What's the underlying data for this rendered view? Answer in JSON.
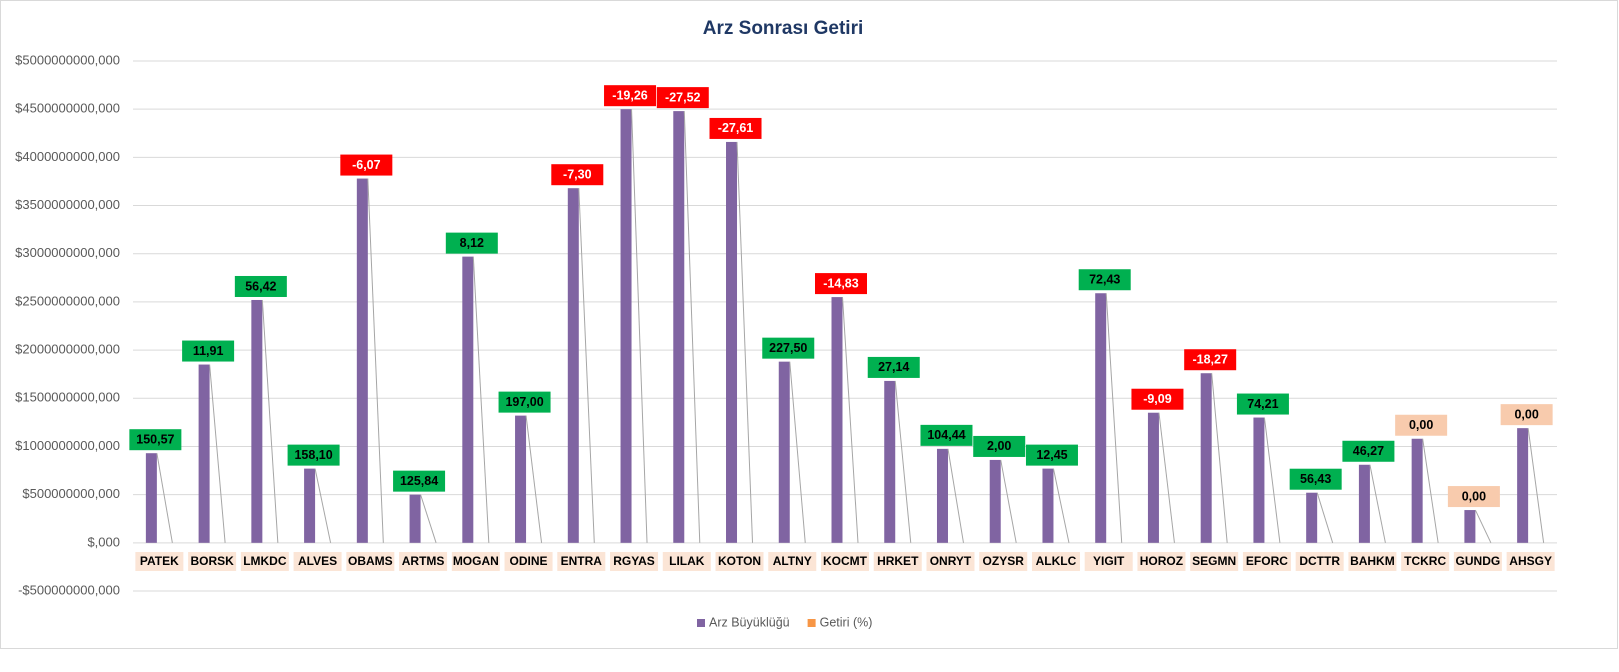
{
  "chart_data": {
    "type": "bar",
    "title": "Arz Sonrası Getiri",
    "categories": [
      "PATEK",
      "BORSK",
      "LMKDC",
      "ALVES",
      "OBAMS",
      "ARTMS",
      "MOGAN",
      "ODINE",
      "ENTRA",
      "RGYAS",
      "LILAK",
      "KOTON",
      "ALTNY",
      "KOCMT",
      "HRKET",
      "ONRYT",
      "OZYSR",
      "ALKLC",
      "YIGIT",
      "HOROZ",
      "SEGMN",
      "EFORC",
      "DCTTR",
      "BAHKM",
      "TCKRC",
      "GUNDG",
      "AHSGY"
    ],
    "series": [
      {
        "name": "Arz Büyüklüğü",
        "color": "#8064a2",
        "values": [
          930000000,
          1850000000,
          2520000000,
          770000000,
          3780000000,
          500000000,
          2970000000,
          1320000000,
          3680000000,
          4500000000,
          4480000000,
          4160000000,
          1880000000,
          2550000000,
          1680000000,
          975000000,
          860000000,
          770000000,
          2590000000,
          1350000000,
          1760000000,
          1300000000,
          520000000,
          810000000,
          1080000000,
          340000000,
          1190000000
        ]
      },
      {
        "name": "Getiri (%)",
        "color": "#f79646",
        "values": [
          150.57,
          11.91,
          56.42,
          158.1,
          -6.07,
          125.84,
          8.12,
          197.0,
          -7.3,
          -19.26,
          -27.52,
          -27.61,
          227.5,
          -14.83,
          27.14,
          104.44,
          2.0,
          12.45,
          72.43,
          -9.09,
          -18.27,
          74.21,
          56.43,
          46.27,
          0,
          0,
          0
        ],
        "value_labels": [
          "150,57",
          "11,91",
          "56,42",
          "158,10",
          "-6,07",
          "125,84",
          "8,12",
          "197,00",
          "-7,30",
          "-19,26",
          "-27,52",
          "-27,61",
          "227,50",
          "-14,83",
          "27,14",
          "104,44",
          "2,00",
          "12,45",
          "72,43",
          "-9,09",
          "-18,27",
          "74,21",
          "56,43",
          "46,27",
          "0,00",
          "0,00",
          "0,00"
        ]
      }
    ],
    "ylim": [
      -500000000,
      5000000000
    ],
    "yticks": [
      {
        "value": -500000000,
        "label": "-$500000000,000"
      },
      {
        "value": 0,
        "label": "$,000"
      },
      {
        "value": 500000000,
        "label": "$500000000,000"
      },
      {
        "value": 1000000000,
        "label": "$1000000000,000"
      },
      {
        "value": 1500000000,
        "label": "$1500000000,000"
      },
      {
        "value": 2000000000,
        "label": "$2000000000,000"
      },
      {
        "value": 2500000000,
        "label": "$2500000000,000"
      },
      {
        "value": 3000000000,
        "label": "$3000000000,000"
      },
      {
        "value": 3500000000,
        "label": "$3500000000,000"
      },
      {
        "value": 4000000000,
        "label": "$4000000000,000"
      },
      {
        "value": 4500000000,
        "label": "$4500000000,000"
      },
      {
        "value": 5000000000,
        "label": "$5000000000,000"
      }
    ],
    "grid": true,
    "legend": "bottom"
  }
}
